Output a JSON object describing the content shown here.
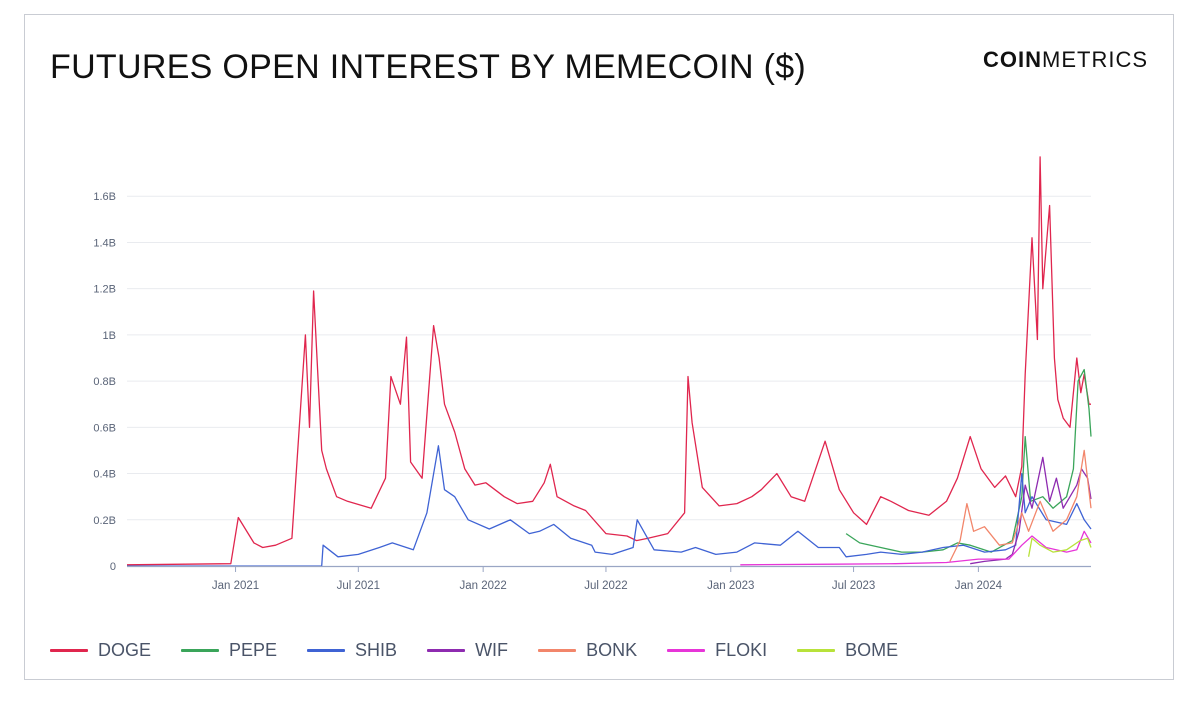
{
  "header": {
    "title": "FUTURES OPEN INTEREST BY MEMECOIN ($)",
    "brand_bold": "COIN",
    "brand_light": "METRICS"
  },
  "chart_data": {
    "type": "line",
    "title": "FUTURES OPEN INTEREST BY MEMECOIN ($)",
    "xlabel": "",
    "ylabel": "",
    "xlim": [
      "2020-07-25",
      "2024-06-15"
    ],
    "ylim": [
      0,
      1800000000
    ],
    "y_ticks": [
      0,
      200000000,
      400000000,
      600000000,
      800000000,
      1000000000,
      1200000000,
      1400000000,
      1600000000
    ],
    "y_tick_labels": [
      "0",
      "0.2B",
      "0.4B",
      "0.6B",
      "0.8B",
      "1B",
      "1.2B",
      "1.4B",
      "1.6B"
    ],
    "x_ticks": [
      "2021-01-01",
      "2021-07-01",
      "2022-01-01",
      "2022-07-01",
      "2023-01-01",
      "2023-07-01",
      "2024-01-01"
    ],
    "x_tick_labels": [
      "Jan 2021",
      "Jul 2021",
      "Jan 2022",
      "Jul 2022",
      "Jan 2023",
      "Jul 2023",
      "Jan 2024"
    ],
    "grid": true,
    "legend_position": "bottom-left",
    "series": [
      {
        "name": "DOGE",
        "color": "#e0264e",
        "x": [
          "2020-07-25",
          "2020-12-25",
          "2021-01-05",
          "2021-01-28",
          "2021-02-10",
          "2021-03-01",
          "2021-03-25",
          "2021-04-14",
          "2021-04-20",
          "2021-04-26",
          "2021-05-08",
          "2021-05-15",
          "2021-05-30",
          "2021-06-15",
          "2021-07-20",
          "2021-08-10",
          "2021-08-18",
          "2021-09-01",
          "2021-09-10",
          "2021-09-16",
          "2021-10-03",
          "2021-10-20",
          "2021-10-28",
          "2021-11-05",
          "2021-11-20",
          "2021-12-05",
          "2021-12-20",
          "2022-01-05",
          "2022-02-01",
          "2022-02-20",
          "2022-03-15",
          "2022-04-01",
          "2022-04-10",
          "2022-04-20",
          "2022-05-15",
          "2022-06-01",
          "2022-07-01",
          "2022-08-01",
          "2022-08-15",
          "2022-09-01",
          "2022-09-30",
          "2022-10-25",
          "2022-10-30",
          "2022-11-05",
          "2022-11-20",
          "2022-12-15",
          "2023-01-10",
          "2023-02-01",
          "2023-02-15",
          "2023-03-10",
          "2023-03-31",
          "2023-04-20",
          "2023-05-20",
          "2023-06-10",
          "2023-07-01",
          "2023-07-20",
          "2023-08-10",
          "2023-08-25",
          "2023-09-20",
          "2023-10-20",
          "2023-11-15",
          "2023-12-01",
          "2023-12-20",
          "2024-01-05",
          "2024-01-25",
          "2024-02-10",
          "2024-02-25",
          "2024-03-05",
          "2024-03-10",
          "2024-03-20",
          "2024-03-28",
          "2024-04-01",
          "2024-04-05",
          "2024-04-15",
          "2024-04-22",
          "2024-04-27",
          "2024-05-05",
          "2024-05-15",
          "2024-05-25",
          "2024-05-31",
          "2024-06-05",
          "2024-06-12",
          "2024-06-15"
        ],
        "values": [
          5000000,
          10000000,
          210000000,
          100000000,
          80000000,
          90000000,
          120000000,
          1000000000,
          600000000,
          1190000000,
          500000000,
          420000000,
          300000000,
          280000000,
          250000000,
          380000000,
          820000000,
          700000000,
          990000000,
          450000000,
          380000000,
          1040000000,
          900000000,
          700000000,
          580000000,
          420000000,
          350000000,
          360000000,
          300000000,
          270000000,
          280000000,
          360000000,
          440000000,
          300000000,
          260000000,
          240000000,
          140000000,
          130000000,
          110000000,
          120000000,
          140000000,
          230000000,
          820000000,
          620000000,
          340000000,
          260000000,
          270000000,
          300000000,
          330000000,
          400000000,
          300000000,
          280000000,
          540000000,
          330000000,
          230000000,
          180000000,
          300000000,
          280000000,
          240000000,
          220000000,
          280000000,
          380000000,
          560000000,
          420000000,
          340000000,
          390000000,
          300000000,
          430000000,
          830000000,
          1420000000,
          980000000,
          1770000000,
          1200000000,
          1560000000,
          900000000,
          720000000,
          640000000,
          600000000,
          900000000,
          750000000,
          830000000,
          700000000,
          700000000
        ]
      },
      {
        "name": "PEPE",
        "color": "#3aa55a",
        "x": [
          "2023-06-20",
          "2023-07-10",
          "2023-08-10",
          "2023-09-10",
          "2023-10-10",
          "2023-11-10",
          "2023-12-01",
          "2023-12-20",
          "2024-01-20",
          "2024-02-20",
          "2024-03-05",
          "2024-03-10",
          "2024-03-18",
          "2024-04-05",
          "2024-04-20",
          "2024-05-10",
          "2024-05-20",
          "2024-05-27",
          "2024-06-05",
          "2024-06-12",
          "2024-06-15"
        ],
        "values": [
          140000000,
          100000000,
          80000000,
          60000000,
          60000000,
          70000000,
          100000000,
          90000000,
          60000000,
          110000000,
          300000000,
          560000000,
          280000000,
          300000000,
          250000000,
          300000000,
          420000000,
          800000000,
          850000000,
          680000000,
          560000000
        ]
      },
      {
        "name": "SHIB",
        "color": "#3f63d4",
        "x": [
          "2020-07-25",
          "2021-05-08",
          "2021-05-10",
          "2021-06-01",
          "2021-07-01",
          "2021-08-01",
          "2021-08-20",
          "2021-09-20",
          "2021-10-10",
          "2021-10-27",
          "2021-11-05",
          "2021-11-20",
          "2021-12-10",
          "2022-01-10",
          "2022-02-10",
          "2022-03-10",
          "2022-03-25",
          "2022-04-15",
          "2022-05-10",
          "2022-06-10",
          "2022-06-15",
          "2022-07-10",
          "2022-08-10",
          "2022-08-16",
          "2022-09-10",
          "2022-10-20",
          "2022-11-10",
          "2022-12-10",
          "2023-01-10",
          "2023-02-05",
          "2023-03-15",
          "2023-04-10",
          "2023-05-10",
          "2023-06-10",
          "2023-06-20",
          "2023-07-20",
          "2023-08-10",
          "2023-09-10",
          "2023-10-10",
          "2023-11-10",
          "2023-12-10",
          "2024-01-10",
          "2024-02-10",
          "2024-02-25",
          "2024-03-05",
          "2024-03-10",
          "2024-03-20",
          "2024-04-10",
          "2024-05-10",
          "2024-05-25",
          "2024-06-05",
          "2024-06-15"
        ],
        "values": [
          0,
          0,
          90000000,
          40000000,
          50000000,
          80000000,
          100000000,
          70000000,
          230000000,
          520000000,
          330000000,
          300000000,
          200000000,
          160000000,
          200000000,
          140000000,
          150000000,
          180000000,
          120000000,
          90000000,
          60000000,
          50000000,
          80000000,
          200000000,
          70000000,
          60000000,
          80000000,
          50000000,
          60000000,
          100000000,
          90000000,
          150000000,
          80000000,
          80000000,
          40000000,
          50000000,
          60000000,
          50000000,
          60000000,
          80000000,
          90000000,
          60000000,
          70000000,
          90000000,
          400000000,
          230000000,
          300000000,
          200000000,
          180000000,
          270000000,
          200000000,
          160000000
        ]
      },
      {
        "name": "WIF",
        "color": "#8e2bb0",
        "x": [
          "2023-12-20",
          "2024-01-10",
          "2024-02-10",
          "2024-02-20",
          "2024-03-01",
          "2024-03-10",
          "2024-03-20",
          "2024-04-05",
          "2024-04-15",
          "2024-04-25",
          "2024-05-05",
          "2024-05-15",
          "2024-05-25",
          "2024-06-01",
          "2024-06-10",
          "2024-06-15"
        ],
        "values": [
          10000000,
          20000000,
          30000000,
          50000000,
          150000000,
          350000000,
          250000000,
          470000000,
          280000000,
          380000000,
          250000000,
          300000000,
          350000000,
          420000000,
          380000000,
          290000000
        ]
      },
      {
        "name": "BONK",
        "color": "#f2866b",
        "x": [
          "2023-11-20",
          "2023-12-05",
          "2023-12-15",
          "2023-12-25",
          "2024-01-10",
          "2024-02-01",
          "2024-02-20",
          "2024-03-05",
          "2024-03-15",
          "2024-04-01",
          "2024-04-20",
          "2024-05-10",
          "2024-05-25",
          "2024-06-05",
          "2024-06-15"
        ],
        "values": [
          20000000,
          110000000,
          270000000,
          150000000,
          170000000,
          90000000,
          100000000,
          230000000,
          150000000,
          280000000,
          150000000,
          200000000,
          300000000,
          500000000,
          250000000
        ]
      },
      {
        "name": "FLOKI",
        "color": "#e735d8",
        "x": [
          "2023-01-15",
          "2023-06-01",
          "2023-09-01",
          "2023-11-15",
          "2024-01-01",
          "2024-02-15",
          "2024-03-05",
          "2024-03-20",
          "2024-04-10",
          "2024-05-10",
          "2024-05-25",
          "2024-06-05",
          "2024-06-15"
        ],
        "values": [
          5000000,
          8000000,
          10000000,
          15000000,
          30000000,
          30000000,
          90000000,
          130000000,
          80000000,
          60000000,
          70000000,
          150000000,
          100000000
        ]
      },
      {
        "name": "BOME",
        "color": "#b8e23a",
        "x": [
          "2024-03-15",
          "2024-03-20",
          "2024-04-01",
          "2024-04-20",
          "2024-05-10",
          "2024-05-30",
          "2024-06-10",
          "2024-06-15"
        ],
        "values": [
          40000000,
          120000000,
          90000000,
          60000000,
          70000000,
          110000000,
          120000000,
          80000000
        ]
      }
    ]
  },
  "legend": [
    {
      "label": "DOGE",
      "color": "#e0264e"
    },
    {
      "label": "PEPE",
      "color": "#3aa55a"
    },
    {
      "label": "SHIB",
      "color": "#3f63d4"
    },
    {
      "label": "WIF",
      "color": "#8e2bb0"
    },
    {
      "label": "BONK",
      "color": "#f2866b"
    },
    {
      "label": "FLOKI",
      "color": "#e735d8"
    },
    {
      "label": "BOME",
      "color": "#b8e23a"
    }
  ]
}
